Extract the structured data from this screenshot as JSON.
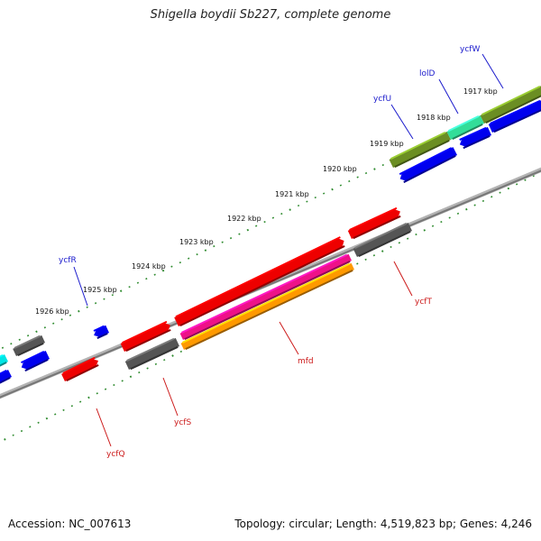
{
  "title": "Shigella boydii Sb227, complete genome",
  "footer": {
    "accession": "Accession: NC_007613",
    "stats": "Topology: circular; Length: 4,519,823 bp; Genes: 4,246"
  },
  "colors": {
    "backbone": "#8c8c8c",
    "tick": "#2e8b2e",
    "label_forward": "#1a1acc",
    "label_reverse": "#cc1a1a",
    "cds_forward": "#0000ee",
    "cds_reverse": "#ee0000",
    "hit_gray": "#666666",
    "olive": "#6b8e23",
    "aqua": "#33dd99",
    "magenta": "#ee1188",
    "orange": "#ff9900",
    "cyan": "#00e5e5"
  },
  "kbp_labels": [
    {
      "kbp": 1917,
      "text": "1917 kbp"
    },
    {
      "kbp": 1918,
      "text": "1918 kbp"
    },
    {
      "kbp": 1919,
      "text": "1919 kbp"
    },
    {
      "kbp": 1920,
      "text": "1920 kbp"
    },
    {
      "kbp": 1921,
      "text": "1921 kbp"
    },
    {
      "kbp": 1922,
      "text": "1922 kbp"
    },
    {
      "kbp": 1923,
      "text": "1923 kbp"
    },
    {
      "kbp": 1924,
      "text": "1924 kbp"
    },
    {
      "kbp": 1925,
      "text": "1925 kbp"
    },
    {
      "kbp": 1926,
      "text": "1926 kbp"
    }
  ],
  "gene_labels": [
    {
      "name": "ycfW",
      "strand": "forward"
    },
    {
      "name": "lolD",
      "strand": "forward"
    },
    {
      "name": "ycfU",
      "strand": "forward"
    },
    {
      "name": "ycfR",
      "strand": "forward"
    },
    {
      "name": "ycfT",
      "strand": "reverse"
    },
    {
      "name": "mfd",
      "strand": "reverse"
    },
    {
      "name": "ycfS",
      "strand": "reverse"
    },
    {
      "name": "ycfQ",
      "strand": "reverse"
    }
  ]
}
